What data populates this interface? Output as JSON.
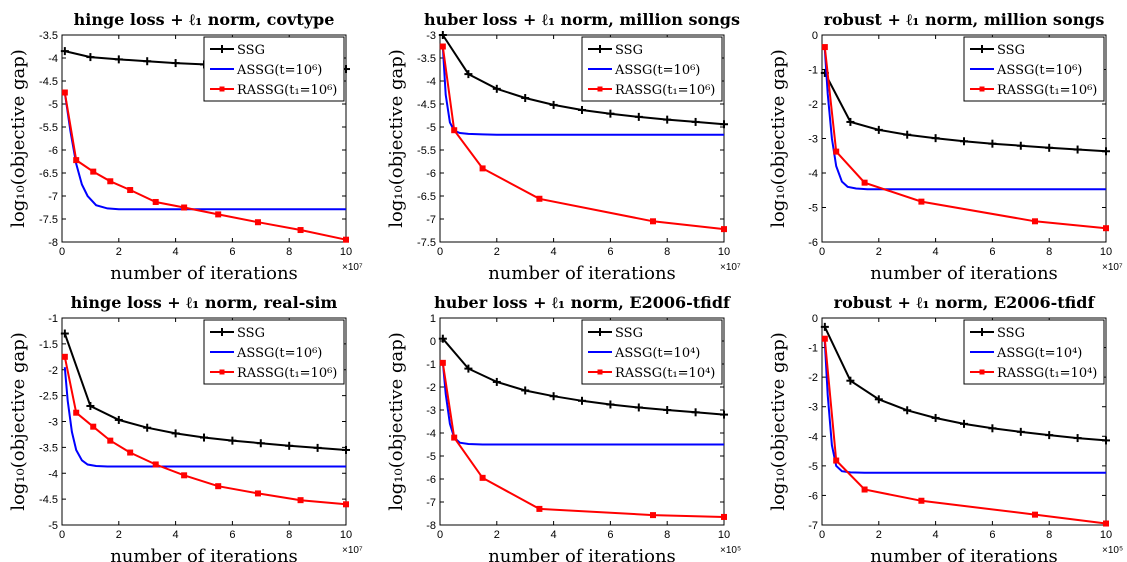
{
  "chart_data": [
    {
      "type": "line",
      "title": "hinge loss + ℓ₁ norm, covtype",
      "xlabel": "number of iterations",
      "ylabel": "log₁₀(objective gap)",
      "x_exponent_label": "×10⁷",
      "xlim": [
        0,
        10
      ],
      "ylim": [
        -8,
        -3.5
      ],
      "xticks": [
        "0",
        "2",
        "4",
        "6",
        "8",
        "10"
      ],
      "yticks": [
        "-8",
        "-7.5",
        "-7",
        "-6.5",
        "-6",
        "-5.5",
        "-5",
        "-4.5",
        "-4",
        "-3.5"
      ],
      "legend_position": "top-right",
      "series": [
        {
          "name": "SSG",
          "color": "#000000",
          "marker": "plus",
          "x": [
            0.1,
            1,
            2,
            3,
            4,
            5,
            6,
            7,
            8,
            9,
            10
          ],
          "y": [
            -3.85,
            -3.98,
            -4.03,
            -4.07,
            -4.11,
            -4.14,
            -4.16,
            -4.18,
            -4.2,
            -4.22,
            -4.24
          ]
        },
        {
          "name": "ASSG(t=10⁶)",
          "color": "#0000ff",
          "marker": "none",
          "x": [
            0.1,
            0.3,
            0.5,
            0.7,
            0.9,
            1.2,
            1.6,
            2,
            3,
            5,
            10
          ],
          "y": [
            -4.75,
            -5.6,
            -6.3,
            -6.75,
            -7.0,
            -7.2,
            -7.27,
            -7.29,
            -7.29,
            -7.29,
            -7.29
          ]
        },
        {
          "name": "RASSG(t₁=10⁶)",
          "color": "#ff0000",
          "marker": "square",
          "x": [
            0.1,
            0.5,
            1.1,
            1.7,
            2.4,
            3.3,
            4.3,
            5.5,
            6.9,
            8.4,
            10
          ],
          "y": [
            -4.75,
            -6.22,
            -6.47,
            -6.68,
            -6.87,
            -7.13,
            -7.25,
            -7.4,
            -7.57,
            -7.74,
            -7.95
          ]
        }
      ]
    },
    {
      "type": "line",
      "title": "huber loss + ℓ₁ norm, million songs",
      "xlabel": "number of iterations",
      "ylabel": "log₁₀(objective gap)",
      "x_exponent_label": "×10⁷",
      "xlim": [
        0,
        10
      ],
      "ylim": [
        -7.5,
        -3
      ],
      "xticks": [
        "0",
        "2",
        "4",
        "6",
        "8",
        "10"
      ],
      "yticks": [
        "-7.5",
        "-7",
        "-6.5",
        "-6",
        "-5.5",
        "-5",
        "-4.5",
        "-4",
        "-3.5",
        "-3"
      ],
      "legend_position": "top-right",
      "series": [
        {
          "name": "SSG",
          "color": "#000000",
          "marker": "plus",
          "x": [
            0.1,
            1,
            2,
            3,
            4,
            5,
            6,
            7,
            8,
            9,
            10
          ],
          "y": [
            -3.0,
            -3.85,
            -4.17,
            -4.37,
            -4.52,
            -4.63,
            -4.71,
            -4.78,
            -4.84,
            -4.89,
            -4.94
          ]
        },
        {
          "name": "ASSG(t=10⁶)",
          "color": "#0000ff",
          "marker": "none",
          "x": [
            0.1,
            0.2,
            0.35,
            0.5,
            0.7,
            1,
            1.5,
            2,
            4,
            10
          ],
          "y": [
            -3.25,
            -4.3,
            -4.9,
            -5.08,
            -5.13,
            -5.15,
            -5.16,
            -5.17,
            -5.17,
            -5.17
          ]
        },
        {
          "name": "RASSG(t₁=10⁶)",
          "color": "#ff0000",
          "marker": "square",
          "x": [
            0.1,
            0.5,
            1.5,
            3.5,
            7.5,
            10
          ],
          "y": [
            -3.25,
            -5.07,
            -5.9,
            -6.56,
            -7.05,
            -7.22
          ]
        }
      ]
    },
    {
      "type": "line",
      "title": "robust + ℓ₁ norm, million songs",
      "xlabel": "number of iterations",
      "ylabel": "log₁₀(objective gap)",
      "x_exponent_label": "×10⁷",
      "xlim": [
        0,
        10
      ],
      "ylim": [
        -6,
        0
      ],
      "xticks": [
        "0",
        "2",
        "4",
        "6",
        "8",
        "10"
      ],
      "yticks": [
        "-6",
        "-5",
        "-4",
        "-3",
        "-2",
        "-1",
        "0"
      ],
      "legend_position": "top-right",
      "series": [
        {
          "name": "SSG",
          "color": "#000000",
          "marker": "plus",
          "x": [
            0.1,
            1,
            2,
            3,
            4,
            5,
            6,
            7,
            8,
            9,
            10
          ],
          "y": [
            -1.1,
            -2.52,
            -2.75,
            -2.89,
            -2.99,
            -3.08,
            -3.15,
            -3.21,
            -3.27,
            -3.32,
            -3.37
          ]
        },
        {
          "name": "ASSG(t=10⁶)",
          "color": "#0000ff",
          "marker": "none",
          "x": [
            0.1,
            0.2,
            0.35,
            0.5,
            0.7,
            0.9,
            1.2,
            1.6,
            2,
            4,
            10
          ],
          "y": [
            -0.4,
            -1.7,
            -3.0,
            -3.8,
            -4.25,
            -4.4,
            -4.45,
            -4.47,
            -4.47,
            -4.47,
            -4.47
          ]
        },
        {
          "name": "RASSG(t₁=10⁶)",
          "color": "#ff0000",
          "marker": "square",
          "x": [
            0.1,
            0.5,
            1.5,
            3.5,
            7.5,
            10
          ],
          "y": [
            -0.35,
            -3.38,
            -4.28,
            -4.83,
            -5.4,
            -5.6
          ]
        }
      ]
    },
    {
      "type": "line",
      "title": "hinge loss + ℓ₁ norm, real-sim",
      "xlabel": "number of iterations",
      "ylabel": "log₁₀(objective gap)",
      "x_exponent_label": "×10⁷",
      "xlim": [
        0,
        10
      ],
      "ylim": [
        -5,
        -1
      ],
      "xticks": [
        "0",
        "2",
        "4",
        "6",
        "8",
        "10"
      ],
      "yticks": [
        "-5",
        "-4.5",
        "-4",
        "-3.5",
        "-3",
        "-2.5",
        "-2",
        "-1.5",
        "-1"
      ],
      "legend_position": "top-right",
      "series": [
        {
          "name": "SSG",
          "color": "#000000",
          "marker": "plus",
          "x": [
            0.1,
            1,
            2,
            3,
            4,
            5,
            6,
            7,
            8,
            9,
            10
          ],
          "y": [
            -1.3,
            -2.7,
            -2.97,
            -3.12,
            -3.23,
            -3.31,
            -3.37,
            -3.42,
            -3.47,
            -3.51,
            -3.55
          ]
        },
        {
          "name": "ASSG(t=10⁶)",
          "color": "#0000ff",
          "marker": "none",
          "x": [
            0.1,
            0.2,
            0.35,
            0.5,
            0.7,
            0.9,
            1.2,
            1.6,
            2,
            4,
            10
          ],
          "y": [
            -1.95,
            -2.6,
            -3.2,
            -3.55,
            -3.75,
            -3.83,
            -3.86,
            -3.87,
            -3.87,
            -3.87,
            -3.87
          ]
        },
        {
          "name": "RASSG(t₁=10⁶)",
          "color": "#ff0000",
          "marker": "square",
          "x": [
            0.1,
            0.5,
            1.1,
            1.7,
            2.4,
            3.3,
            4.3,
            5.5,
            6.9,
            8.4,
            10
          ],
          "y": [
            -1.75,
            -2.83,
            -3.1,
            -3.37,
            -3.6,
            -3.83,
            -4.04,
            -4.25,
            -4.39,
            -4.52,
            -4.6
          ]
        }
      ]
    },
    {
      "type": "line",
      "title": "huber loss + ℓ₁ norm, E2006-tfidf",
      "xlabel": "number of iterations",
      "ylabel": "log₁₀(objective gap)",
      "x_exponent_label": "×10⁵",
      "xlim": [
        0,
        10
      ],
      "ylim": [
        -8,
        1
      ],
      "xticks": [
        "0",
        "2",
        "4",
        "6",
        "8",
        "10"
      ],
      "yticks": [
        "-8",
        "-7",
        "-6",
        "-5",
        "-4",
        "-3",
        "-2",
        "-1",
        "0",
        "1"
      ],
      "legend_position": "top-right",
      "series": [
        {
          "name": "SSG",
          "color": "#000000",
          "marker": "plus",
          "x": [
            0.1,
            1,
            2,
            3,
            4,
            5,
            6,
            7,
            8,
            9,
            10
          ],
          "y": [
            0.1,
            -1.2,
            -1.78,
            -2.15,
            -2.4,
            -2.6,
            -2.76,
            -2.89,
            -3.0,
            -3.1,
            -3.2
          ]
        },
        {
          "name": "ASSG(t=10⁴)",
          "color": "#0000ff",
          "marker": "none",
          "x": [
            0.1,
            0.2,
            0.35,
            0.5,
            0.7,
            1,
            1.5,
            2,
            4,
            10
          ],
          "y": [
            -0.9,
            -2.3,
            -3.6,
            -4.2,
            -4.42,
            -4.48,
            -4.5,
            -4.5,
            -4.5,
            -4.5
          ]
        },
        {
          "name": "RASSG(t₁=10⁴)",
          "color": "#ff0000",
          "marker": "square",
          "x": [
            0.1,
            0.5,
            1.5,
            3.5,
            7.5,
            10
          ],
          "y": [
            -0.95,
            -4.2,
            -5.95,
            -7.3,
            -7.57,
            -7.65
          ]
        }
      ]
    },
    {
      "type": "line",
      "title": "robust + ℓ₁ norm, E2006-tfidf",
      "xlabel": "number of iterations",
      "ylabel": "log₁₀(objective gap)",
      "x_exponent_label": "×10⁵",
      "xlim": [
        0,
        10
      ],
      "ylim": [
        -7,
        0
      ],
      "xticks": [
        "0",
        "2",
        "4",
        "6",
        "8",
        "10"
      ],
      "yticks": [
        "-7",
        "-6",
        "-5",
        "-4",
        "-3",
        "-2",
        "-1",
        "0"
      ],
      "legend_position": "top-right",
      "series": [
        {
          "name": "SSG",
          "color": "#000000",
          "marker": "plus",
          "x": [
            0.1,
            1,
            2,
            3,
            4,
            5,
            6,
            7,
            8,
            9,
            10
          ],
          "y": [
            -0.3,
            -2.12,
            -2.75,
            -3.12,
            -3.38,
            -3.58,
            -3.73,
            -3.85,
            -3.96,
            -4.06,
            -4.14
          ]
        },
        {
          "name": "ASSG(t=10⁴)",
          "color": "#0000ff",
          "marker": "none",
          "x": [
            0.1,
            0.2,
            0.35,
            0.5,
            0.7,
            1,
            1.5,
            2,
            4,
            10
          ],
          "y": [
            -0.8,
            -2.6,
            -4.3,
            -5.0,
            -5.18,
            -5.22,
            -5.23,
            -5.23,
            -5.23,
            -5.23
          ]
        },
        {
          "name": "RASSG(t₁=10⁴)",
          "color": "#ff0000",
          "marker": "square",
          "x": [
            0.1,
            0.5,
            1.5,
            3.5,
            7.5,
            10
          ],
          "y": [
            -0.7,
            -4.82,
            -5.8,
            -6.18,
            -6.65,
            -6.95
          ]
        }
      ]
    }
  ]
}
